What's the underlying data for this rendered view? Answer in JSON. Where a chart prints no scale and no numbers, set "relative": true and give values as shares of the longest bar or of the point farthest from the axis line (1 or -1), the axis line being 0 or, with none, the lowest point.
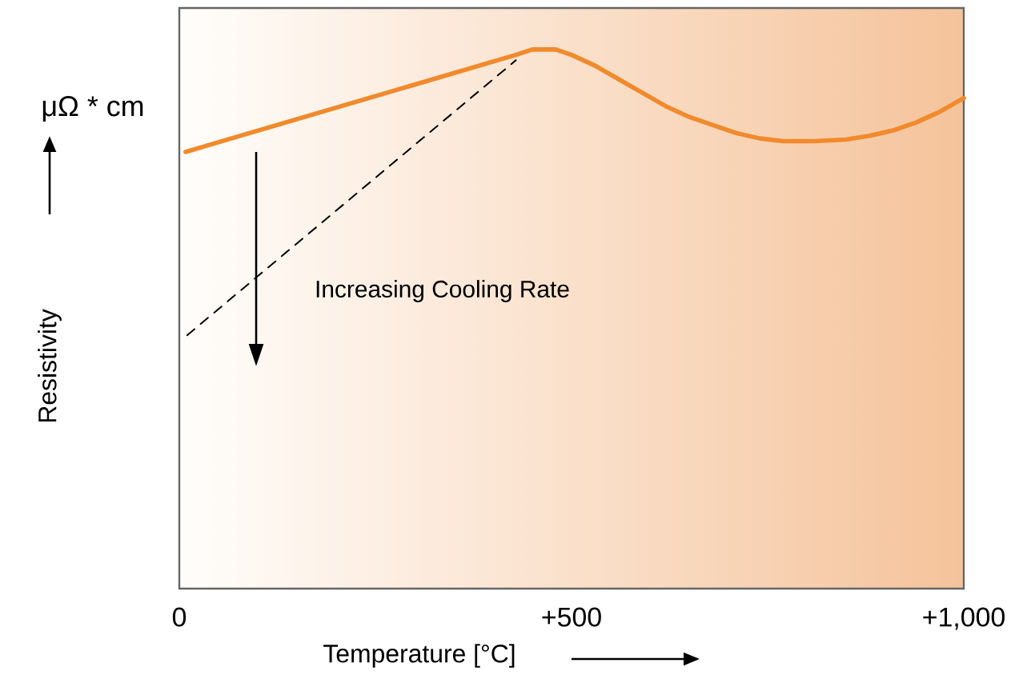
{
  "chart_data": {
    "type": "line",
    "relative": true,
    "xlabel": "Temperature [°C]",
    "ylabel": "Resistivity",
    "annotations": [
      "μΩ * cm",
      "Increasing Cooling Rate"
    ],
    "xlim": [
      0,
      1000
    ],
    "xticks": [
      0,
      {
        "value": 500,
        "label": "+500"
      },
      {
        "value": 1000,
        "label": "+1,000"
      }
    ],
    "tick_labels": "x",
    "series": [
      {
        "color": "#f08a2c",
        "x": [
          8,
          429,
          450,
          465,
          480,
          500,
          530,
          560,
          590,
          620,
          650,
          680,
          710,
          740,
          770,
          810,
          850,
          880,
          910,
          940,
          970,
          1000
        ],
        "values": [
          0.81,
          0.99,
          1.0,
          1.0,
          1.0,
          0.99,
          0.97,
          0.945,
          0.92,
          0.895,
          0.875,
          0.86,
          0.845,
          0.835,
          0.83,
          0.83,
          0.833,
          0.84,
          0.85,
          0.865,
          0.885,
          0.91
        ]
      },
      {
        "color": "#000000",
        "line_style": "dashed",
        "x": [
          10,
          429
        ],
        "values": [
          0.47,
          0.98
        ]
      }
    ]
  }
}
